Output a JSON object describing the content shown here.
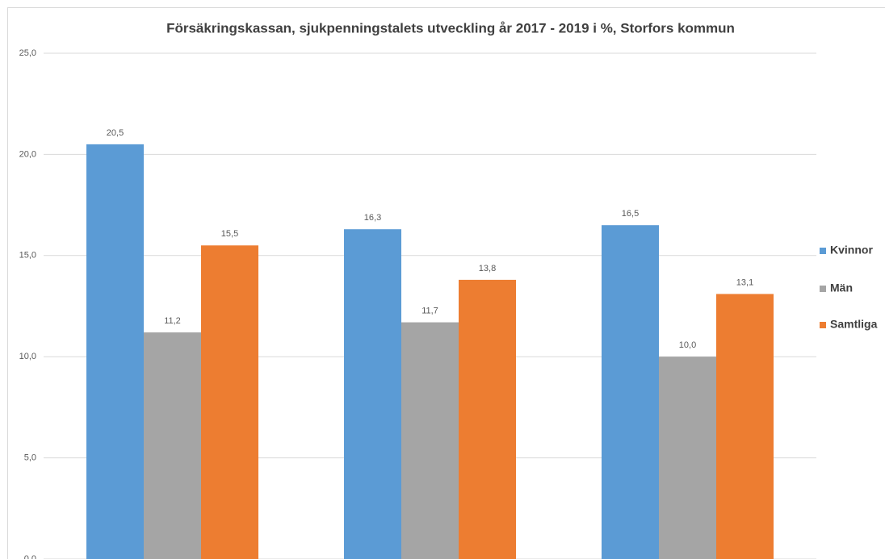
{
  "chart_data": {
    "type": "bar",
    "title": "Försäkringskassan, sjukpenningstalets utveckling år 2017 - 2019 i %, Storfors kommun",
    "categories": [
      null,
      null,
      null
    ],
    "series": [
      {
        "name": "Kvinnor",
        "color": "#5b9bd5",
        "values": [
          20.5,
          16.3,
          16.5
        ],
        "value_labels": [
          "20,5",
          "16,3",
          "16,5"
        ]
      },
      {
        "name": "Män",
        "color": "#a5a5a5",
        "values": [
          11.2,
          11.7,
          10.0
        ],
        "value_labels": [
          "11,2",
          "11,7",
          "10,0"
        ]
      },
      {
        "name": "Samtliga",
        "color": "#ed7d31",
        "values": [
          15.5,
          13.8,
          13.1
        ],
        "value_labels": [
          "15,5",
          "13,8",
          "13,1"
        ]
      }
    ],
    "ylim": [
      0,
      25
    ],
    "yticks": [
      {
        "value": 0,
        "label": "0,0"
      },
      {
        "value": 5,
        "label": "5,0"
      },
      {
        "value": 10,
        "label": "10,0"
      },
      {
        "value": 15,
        "label": "15,0"
      },
      {
        "value": 20,
        "label": "20,0"
      },
      {
        "value": 25,
        "label": "25,0"
      }
    ],
    "grid": true,
    "legend": "right"
  }
}
